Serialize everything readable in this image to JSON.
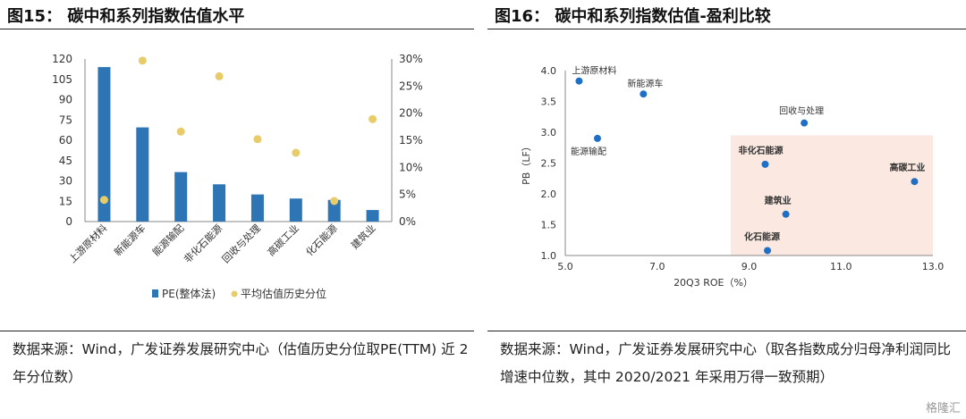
{
  "left": {
    "title": "图15：  碳中和系列指数估值水平",
    "source": "数据来源：Wind，广发证券发展研究中心（估值历史分位取PE(TTM) 近 2 年分位数）"
  },
  "right": {
    "title": "图16：  碳中和系列指数估值-盈利比较",
    "source": "数据来源：Wind，广发证券发展研究中心（取各指数成分归母净利润同比增速中位数，其中 2020/2021 年采用万得一致预期）"
  },
  "watermark": "格隆汇",
  "colors": {
    "bar": "#2e75b6",
    "dot_left": "#e8cc6a",
    "dot_right": "#1f6fc5",
    "shade": "#fbe9e1"
  },
  "chart_data": [
    {
      "type": "bar",
      "title": "",
      "categories": [
        "上游原材料",
        "新能源车",
        "能源输配",
        "非化石能源",
        "回收与处理",
        "高碳工业",
        "化石能源",
        "建筑业"
      ],
      "series": [
        {
          "name": "PE(整体法)",
          "type": "bar",
          "axis": "left",
          "values": [
            114,
            69.5,
            36.5,
            27.5,
            20,
            17,
            16,
            8.5
          ]
        },
        {
          "name": "平均估值历史分位",
          "type": "scatter",
          "axis": "right",
          "values": [
            0.04,
            0.297,
            0.166,
            0.268,
            0.152,
            0.127,
            0.038,
            0.189
          ]
        }
      ],
      "y_left": {
        "ylim": [
          0,
          120
        ],
        "ticks": [
          "0",
          "15",
          "30",
          "45",
          "60",
          "75",
          "90",
          "105",
          "120"
        ]
      },
      "y_right": {
        "ylim": [
          0,
          0.3
        ],
        "ticks": [
          "0%",
          "5%",
          "10%",
          "15%",
          "20%",
          "25%",
          "30%"
        ]
      },
      "legend": "bottom",
      "grid": false
    },
    {
      "type": "scatter",
      "title": "",
      "xlabel": "20Q3 ROE（%）",
      "ylabel": "PB（LF）",
      "xlim": [
        5.0,
        13.0
      ],
      "ylim": [
        1.0,
        4.0
      ],
      "x_ticks": [
        "5.0",
        "7.0",
        "9.0",
        "11.0",
        "13.0"
      ],
      "y_ticks": [
        "1.0",
        "1.5",
        "2.0",
        "2.5",
        "3.0",
        "3.5",
        "4.0"
      ],
      "points": [
        {
          "label": "上游原材料",
          "x": 5.3,
          "y": 3.83
        },
        {
          "label": "新能源车",
          "x": 6.7,
          "y": 3.62
        },
        {
          "label": "回收与处理",
          "x": 10.2,
          "y": 3.15
        },
        {
          "label": "能源输配",
          "x": 5.7,
          "y": 2.9
        },
        {
          "label": "非化石能源",
          "x": 9.35,
          "y": 2.48
        },
        {
          "label": "高碳工业",
          "x": 12.6,
          "y": 2.2
        },
        {
          "label": "建筑业",
          "x": 9.8,
          "y": 1.67
        },
        {
          "label": "化石能源",
          "x": 9.4,
          "y": 1.08
        }
      ],
      "highlight_region": {
        "xlim": [
          8.6,
          13.0
        ],
        "ylim": [
          1.0,
          2.95
        ]
      },
      "grid": false
    }
  ]
}
